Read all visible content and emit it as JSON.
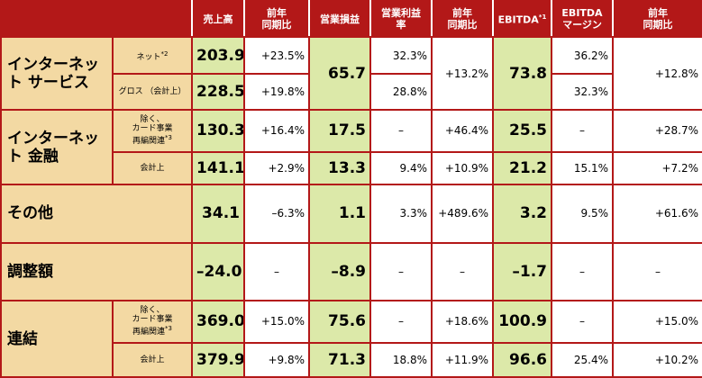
{
  "colors": {
    "header_bg": "#b31818",
    "segment_bg": "#f3d9a3",
    "highlight_bg": "#dce9a9",
    "border": "#b31818"
  },
  "header": {
    "sales": "売上高",
    "sales_yoy": "前年\n同期比",
    "op_income": "営業損益",
    "op_margin": "営業利益\n率",
    "op_yoy": "前年\n同期比",
    "ebitda": "EBITDA",
    "ebitda_note": "*1",
    "ebitda_margin": "EBITDA\nマージン",
    "ebitda_yoy": "前年\n同期比"
  },
  "rows": {
    "internet": {
      "segment": "インターネット\nサービス",
      "net": {
        "label": "ネット",
        "note": "*2",
        "sales": "203.9",
        "sales_yoy": "+23.5%",
        "op_margin": "32.3%",
        "ebitda_margin": "36.2%"
      },
      "gross": {
        "label": "グロス\n（会計上）",
        "sales": "228.5",
        "sales_yoy": "+19.8%",
        "op_margin": "28.8%",
        "ebitda_margin": "32.3%"
      },
      "op_income": "65.7",
      "op_yoy": "+13.2%",
      "ebitda": "73.8",
      "ebitda_yoy": "+12.8%"
    },
    "finance": {
      "segment": "インターネット\n金融",
      "excl": {
        "label": "除く、\nカード事業\n再編関連",
        "note": "*3",
        "sales": "130.3",
        "sales_yoy": "+16.4%",
        "op_income": "17.5",
        "op_margin": "–",
        "op_yoy": "+46.4%",
        "ebitda": "25.5",
        "ebitda_margin": "–",
        "ebitda_yoy": "+28.7%"
      },
      "acct": {
        "label": "会計上",
        "sales": "141.1",
        "sales_yoy": "+2.9%",
        "op_income": "13.3",
        "op_margin": "9.4%",
        "op_yoy": "+10.9%",
        "ebitda": "21.2",
        "ebitda_margin": "15.1%",
        "ebitda_yoy": "+7.2%"
      }
    },
    "other": {
      "segment": "その他",
      "sales": "34.1",
      "sales_yoy": "–6.3%",
      "op_income": "1.1",
      "op_margin": "3.3%",
      "op_yoy": "+489.6%",
      "ebitda": "3.2",
      "ebitda_margin": "9.5%",
      "ebitda_yoy": "+61.6%"
    },
    "adjust": {
      "segment": "調整額",
      "sales": "–24.0",
      "sales_yoy": "–",
      "op_income": "–8.9",
      "op_margin": "–",
      "op_yoy": "–",
      "ebitda": "–1.7",
      "ebitda_margin": "–",
      "ebitda_yoy": "–"
    },
    "consolidated": {
      "segment": "連結",
      "excl": {
        "label": "除く、\nカード事業\n再編関連",
        "note": "*3",
        "sales": "369.0",
        "sales_yoy": "+15.0%",
        "op_income": "75.6",
        "op_margin": "–",
        "op_yoy": "+18.6%",
        "ebitda": "100.9",
        "ebitda_margin": "–",
        "ebitda_yoy": "+15.0%"
      },
      "acct": {
        "label": "会計上",
        "sales": "379.9",
        "sales_yoy": "+9.8%",
        "op_income": "71.3",
        "op_margin": "18.8%",
        "op_yoy": "+11.9%",
        "ebitda": "96.6",
        "ebitda_margin": "25.4%",
        "ebitda_yoy": "+10.2%"
      }
    }
  }
}
